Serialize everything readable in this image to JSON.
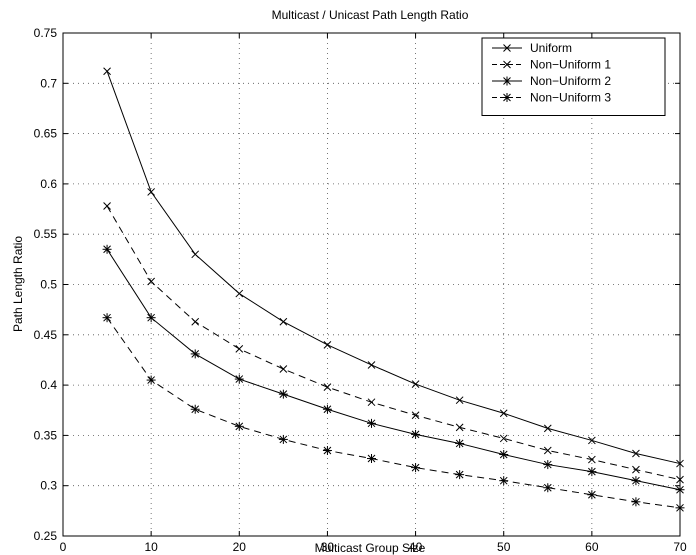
{
  "chart_data": {
    "type": "line",
    "title": "Multicast / Unicast Path Length Ratio",
    "xlabel": "Multicast Group Size",
    "ylabel": "Path Length Ratio",
    "xlim": [
      0,
      70
    ],
    "ylim": [
      0.25,
      0.75
    ],
    "xticks": [
      0,
      10,
      20,
      30,
      40,
      50,
      60,
      70
    ],
    "yticks": [
      0.25,
      0.3,
      0.35,
      0.4,
      0.45,
      0.5,
      0.55,
      0.6,
      0.65,
      0.7,
      0.75
    ],
    "x_tick_labels": [
      "0",
      "10",
      "20",
      "30",
      "40",
      "50",
      "60",
      "70"
    ],
    "y_tick_labels": [
      "0.25",
      "0.3",
      "0.35",
      "0.4",
      "0.45",
      "0.5",
      "0.55",
      "0.6",
      "0.65",
      "0.7",
      "0.75"
    ],
    "grid": true,
    "legend_position": "top-right",
    "x": [
      5,
      10,
      15,
      20,
      25,
      30,
      35,
      40,
      45,
      50,
      55,
      60,
      65,
      70
    ],
    "series": [
      {
        "name": "Uniform",
        "line": "solid",
        "marker": "x",
        "color": "#000000",
        "values": [
          0.712,
          0.592,
          0.53,
          0.491,
          0.463,
          0.44,
          0.42,
          0.401,
          0.385,
          0.372,
          0.357,
          0.345,
          0.332,
          0.322
        ]
      },
      {
        "name": "Non−Uniform 1",
        "line": "dashed",
        "marker": "x",
        "color": "#000000",
        "values": [
          0.578,
          0.503,
          0.463,
          0.436,
          0.416,
          0.398,
          0.383,
          0.37,
          0.358,
          0.347,
          0.335,
          0.326,
          0.316,
          0.306
        ]
      },
      {
        "name": "Non−Uniform 2",
        "line": "solid",
        "marker": "asterisk",
        "color": "#000000",
        "values": [
          0.535,
          0.467,
          0.431,
          0.406,
          0.391,
          0.376,
          0.362,
          0.351,
          0.342,
          0.331,
          0.321,
          0.314,
          0.305,
          0.296
        ]
      },
      {
        "name": "Non−Uniform 3",
        "line": "dashed",
        "marker": "asterisk",
        "color": "#000000",
        "values": [
          0.467,
          0.405,
          0.376,
          0.359,
          0.346,
          0.335,
          0.327,
          0.318,
          0.311,
          0.305,
          0.298,
          0.291,
          0.284,
          0.278
        ]
      }
    ]
  }
}
